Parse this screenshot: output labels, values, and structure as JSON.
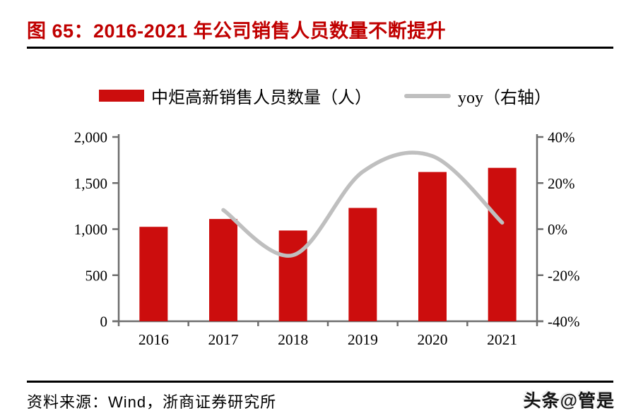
{
  "title": "图 65：2016-2021 年公司销售人员数量不断提升",
  "legend": {
    "bar_label": "中炬高新销售人员数量（人）",
    "line_label": "yoy（右轴）"
  },
  "source": "资料来源：Wind，浙商证券研究所",
  "watermark": "头条@管是",
  "colors": {
    "title_red": "#C00000",
    "bar_red": "#CC0D0D",
    "line_gray": "#BFBFBF",
    "axis_gray": "#6e6e6e",
    "text_black": "#000000",
    "rule_black": "#000000"
  },
  "chart_data": {
    "type": "bar",
    "subtype": "bar+smooth-line-dual-axis",
    "categories": [
      "2016",
      "2017",
      "2018",
      "2019",
      "2020",
      "2021"
    ],
    "series": [
      {
        "name": "中炬高新销售人员数量（人）",
        "type": "bar",
        "axis": "left",
        "color": "#CC0D0D",
        "values": [
          1025,
          1110,
          985,
          1230,
          1620,
          1665
        ]
      },
      {
        "name": "yoy（右轴）",
        "type": "line",
        "axis": "right",
        "color": "#BFBFBF",
        "smooth": true,
        "values": [
          null,
          8.3,
          -11.3,
          24.9,
          31.7,
          2.8
        ]
      }
    ],
    "left_axis": {
      "min": 0,
      "max": 2000,
      "tick_labels_top_to_bottom": [
        "2,000",
        "1,500",
        "1,000",
        "500",
        "0"
      ]
    },
    "right_axis": {
      "min": -40,
      "max": 40,
      "unit": "%",
      "tick_labels_top_to_bottom": [
        "40%",
        "20%",
        "0%",
        "-20%",
        "-40%"
      ]
    },
    "grid": false,
    "legend_position": "top-center",
    "title": "图 65：2016-2021 年公司销售人员数量不断提升",
    "xlabel": "",
    "ylabel": ""
  }
}
